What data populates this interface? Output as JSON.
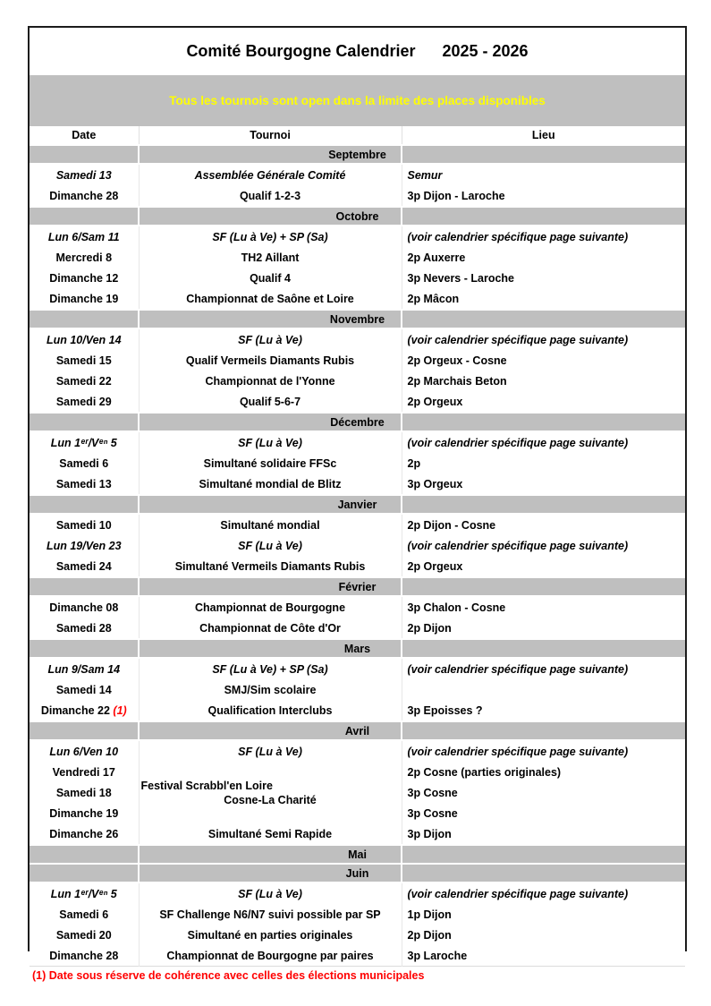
{
  "title": {
    "main": "Comité Bourgogne Calendrier",
    "years": "2025 - 2026"
  },
  "banner": {
    "text": "Tous les tournois sont open dans la limite des places disponibles",
    "bg": "#bfbfbf",
    "color": "#ffff00"
  },
  "colors": {
    "band_gray": "#bfbfbf",
    "note_red": "#ff0000",
    "border": "#1c1c1c"
  },
  "columns": {
    "date": "Date",
    "tournoi": "Tournoi",
    "lieu": "Lieu"
  },
  "months": [
    {
      "name": "Septembre",
      "rows": [
        {
          "italic": true,
          "date": "Samedi 13",
          "tournoi": "Assemblée Générale Comité",
          "lieu": "Semur"
        },
        {
          "date": "Dimanche 28",
          "tournoi": "Qualif 1-2-3",
          "lieu": "3p Dijon - Laroche"
        }
      ]
    },
    {
      "name": "Octobre",
      "rows": [
        {
          "italic": true,
          "date": "Lun 6/Sam 11",
          "tournoi": "SF (Lu à Ve) + SP (Sa)",
          "lieu": "(voir calendrier spécifique page suivante)"
        },
        {
          "date": "Mercredi 8",
          "tournoi": "TH2 Aillant",
          "lieu": "2p Auxerre"
        },
        {
          "date": "Dimanche 12",
          "tournoi": "Qualif 4",
          "lieu": "3p Nevers - Laroche"
        },
        {
          "date": "Dimanche 19",
          "tournoi": "Championnat de Saône et Loire",
          "lieu": "2p Mâcon"
        }
      ]
    },
    {
      "name": "Novembre",
      "rows": [
        {
          "italic": true,
          "date": "Lun 10/Ven 14",
          "tournoi": "SF (Lu à Ve)",
          "lieu": "(voir calendrier spécifique page suivante)"
        },
        {
          "date": "Samedi 15",
          "tournoi": "Qualif Vermeils Diamants Rubis",
          "lieu": "2p Orgeux - Cosne"
        },
        {
          "date": "Samedi 22",
          "tournoi": "Championnat de l'Yonne",
          "lieu": "2p Marchais Beton"
        },
        {
          "date": "Samedi 29",
          "tournoi": "Qualif 5-6-7",
          "lieu": "2p Orgeux"
        }
      ]
    },
    {
      "name": "Décembre",
      "rows": [
        {
          "italic": true,
          "date": "Lun 1ᵉʳ/Vᵉⁿ 5",
          "tournoi": "SF (Lu à Ve)",
          "lieu": "(voir calendrier spécifique page suivante)"
        },
        {
          "date": "Samedi 6",
          "tournoi": "Simultané solidaire FFSc",
          "lieu": "2p"
        },
        {
          "date": "Samedi 13",
          "tournoi": "Simultané mondial de Blitz",
          "lieu": "3p Orgeux"
        }
      ]
    },
    {
      "name": "Janvier",
      "rows": [
        {
          "date": "Samedi 10",
          "tournoi": "Simultané mondial",
          "lieu": "2p Dijon - Cosne"
        },
        {
          "italic": true,
          "date": "Lun 19/Ven 23",
          "tournoi": "SF (Lu à Ve)",
          "lieu": "(voir calendrier spécifique page suivante)"
        },
        {
          "date": "Samedi 24",
          "tournoi": "Simultané Vermeils Diamants Rubis",
          "lieu": "2p Orgeux"
        }
      ]
    },
    {
      "name": "Février",
      "rows": [
        {
          "date": "Dimanche 08",
          "tournoi": "Championnat de Bourgogne",
          "lieu": "3p Chalon - Cosne"
        },
        {
          "date": "Samedi 28",
          "tournoi": "Championnat de Côte d'Or",
          "lieu": "2p Dijon"
        }
      ]
    },
    {
      "name": "Mars",
      "rows": [
        {
          "italic": true,
          "date": "Lun 9/Sam 14",
          "tournoi": "SF (Lu à Ve)  + SP (Sa)",
          "lieu": "(voir calendrier spécifique page suivante)"
        },
        {
          "date": "Samedi 14",
          "tournoi": "SMJ/Sim scolaire",
          "lieu": ""
        },
        {
          "date": "Dimanche 22",
          "date_note": "(1)",
          "tournoi": "Qualification  Interclubs",
          "lieu": "3p Epoisses ?"
        }
      ]
    },
    {
      "name": "Avril",
      "rows": [
        {
          "italic": true,
          "date": "Lun 6/Ven 10",
          "tournoi": "SF (Lu à Ve)",
          "lieu": "(voir calendrier spécifique page suivante)"
        },
        {
          "date": "Vendredi 17",
          "tournoi_span": {
            "rowspan": 3,
            "lines": [
              "Festival Scrabbl'en Loire",
              "Cosne-La Charité"
            ]
          },
          "lieu": "2p Cosne (parties originales)"
        },
        {
          "date": "Samedi 18",
          "skip_tournoi": true,
          "lieu": "3p Cosne"
        },
        {
          "date": "Dimanche 19",
          "skip_tournoi": true,
          "lieu": "3p Cosne"
        },
        {
          "date": "Dimanche 26",
          "tournoi": "Simultané Semi Rapide",
          "lieu": "3p Dijon"
        }
      ]
    },
    {
      "name": "Mai",
      "rows": []
    },
    {
      "name": "Juin",
      "rows": [
        {
          "italic": true,
          "date": "Lun 1ᵉʳ/Vᵉⁿ 5",
          "tournoi": "SF (Lu à Ve)",
          "lieu": "(voir calendrier spécifique page suivante)"
        },
        {
          "date": "Samedi 6",
          "tournoi": "SF Challenge N6/N7 suivi possible par SP",
          "lieu": "1p Dijon"
        },
        {
          "date": "Samedi 20",
          "tournoi": "Simultané en parties originales",
          "lieu": "2p Dijon"
        },
        {
          "date": "Dimanche 28",
          "tournoi": "Championnat de Bourgogne par paires",
          "lieu": "3p Laroche"
        }
      ]
    }
  ],
  "footnote": "(1) Date sous réserve de cohérence avec celles des élections municipales"
}
